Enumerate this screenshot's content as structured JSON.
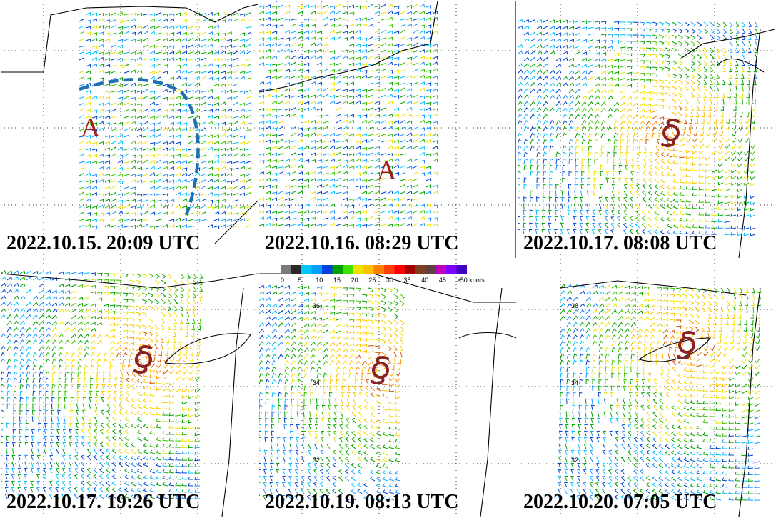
{
  "figure": {
    "panels": [
      {
        "id": "p1",
        "timestamp": "2022.10.15. 20:09 UTC",
        "annotation": "A",
        "has_front_line": true,
        "has_cyclone_symbol": false,
        "lat_labels": []
      },
      {
        "id": "p2",
        "timestamp": "2022.10.16. 08:29 UTC",
        "annotation": "A",
        "has_front_line": false,
        "has_cyclone_symbol": false,
        "lat_labels": []
      },
      {
        "id": "p3",
        "timestamp": "2022.10.17. 08:08 UTC",
        "annotation": "",
        "has_front_line": false,
        "has_cyclone_symbol": true,
        "lat_labels": []
      },
      {
        "id": "p4",
        "timestamp": "2022.10.17. 19:26 UTC",
        "annotation": "",
        "has_front_line": false,
        "has_cyclone_symbol": true,
        "lat_labels": []
      },
      {
        "id": "p5",
        "timestamp": "2022.10.19. 08:13 UTC",
        "annotation": "",
        "has_front_line": false,
        "has_cyclone_symbol": true,
        "lat_labels": [
          "36",
          "34",
          "32"
        ]
      },
      {
        "id": "p6",
        "timestamp": "2022.10.20. 07:05 UTC",
        "annotation": "",
        "has_front_line": false,
        "has_cyclone_symbol": true,
        "lat_labels": [
          "36",
          "34",
          "32"
        ]
      }
    ],
    "legend": {
      "labels": [
        "0",
        "5",
        "10",
        "15",
        "20",
        "25",
        "30",
        "35",
        "40",
        "45",
        ">50 knots"
      ],
      "colors": [
        "#7a7a7a",
        "#2a2a2a",
        "#00c8ff",
        "#00a0ff",
        "#0040e0",
        "#00a000",
        "#40e000",
        "#f0e000",
        "#ffc000",
        "#ff8000",
        "#ff4000",
        "#ff0000",
        "#a00000",
        "#804020",
        "#604040",
        "#c000c0",
        "#8000ff",
        "#4000c0"
      ]
    },
    "colors": {
      "front_line": "#1f6fb5",
      "cyclone": "#8b2323",
      "annotation": "#a11b1b"
    }
  }
}
